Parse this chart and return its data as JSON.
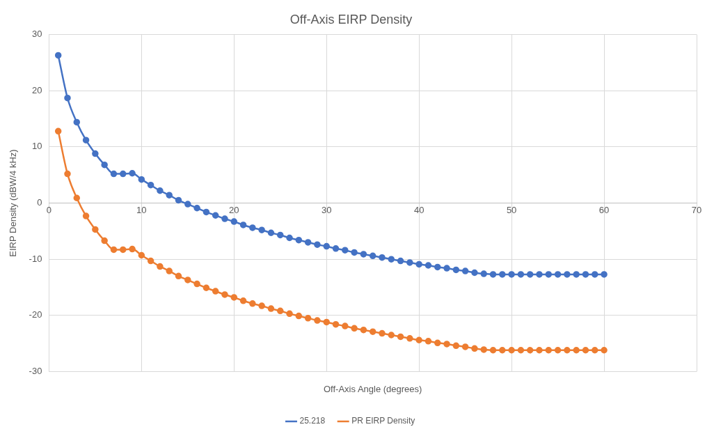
{
  "chart_data": {
    "type": "line",
    "title": "Off-Axis EIRP Density",
    "xlabel": "Off-Axis Angle (degrees)",
    "ylabel": "EIRP Density (dBW/4 kHz)",
    "x": [
      1,
      2,
      3,
      4,
      5,
      6,
      7,
      8,
      9,
      10,
      11,
      12,
      13,
      14,
      15,
      16,
      17,
      18,
      19,
      20,
      21,
      22,
      23,
      24,
      25,
      26,
      27,
      28,
      29,
      30,
      31,
      32,
      33,
      34,
      35,
      36,
      37,
      38,
      39,
      40,
      41,
      42,
      43,
      44,
      45,
      46,
      47,
      48,
      49,
      50,
      51,
      52,
      53,
      54,
      55,
      56,
      57,
      58,
      59,
      60
    ],
    "series": [
      {
        "name": "25.218",
        "color": "#4472c4",
        "values": [
          26.3,
          18.7,
          14.4,
          11.2,
          8.8,
          6.8,
          5.2,
          5.2,
          5.3,
          4.2,
          3.2,
          2.2,
          1.4,
          0.5,
          -0.2,
          -0.9,
          -1.6,
          -2.2,
          -2.8,
          -3.3,
          -3.9,
          -4.4,
          -4.8,
          -5.3,
          -5.7,
          -6.2,
          -6.6,
          -7.0,
          -7.4,
          -7.7,
          -8.1,
          -8.4,
          -8.8,
          -9.1,
          -9.4,
          -9.7,
          -10.0,
          -10.3,
          -10.6,
          -10.9,
          -11.1,
          -11.4,
          -11.6,
          -11.9,
          -12.1,
          -12.4,
          -12.6,
          -12.7,
          -12.7,
          -12.7,
          -12.7,
          -12.7,
          -12.7,
          -12.7,
          -12.7,
          -12.7,
          -12.7,
          -12.7,
          -12.7,
          -12.7
        ]
      },
      {
        "name": "PR EIRP Density",
        "color": "#ed7d31",
        "values": [
          12.8,
          5.2,
          0.9,
          -2.3,
          -4.7,
          -6.7,
          -8.3,
          -8.3,
          -8.2,
          -9.3,
          -10.3,
          -11.3,
          -12.1,
          -13.0,
          -13.7,
          -14.4,
          -15.1,
          -15.7,
          -16.3,
          -16.8,
          -17.4,
          -17.9,
          -18.3,
          -18.8,
          -19.2,
          -19.7,
          -20.1,
          -20.5,
          -20.9,
          -21.2,
          -21.6,
          -21.9,
          -22.3,
          -22.6,
          -22.9,
          -23.2,
          -23.5,
          -23.8,
          -24.1,
          -24.4,
          -24.6,
          -24.9,
          -25.1,
          -25.4,
          -25.6,
          -25.9,
          -26.1,
          -26.2,
          -26.2,
          -26.2,
          -26.2,
          -26.2,
          -26.2,
          -26.2,
          -26.2,
          -26.2,
          -26.2,
          -26.2,
          -26.2,
          -26.2
        ]
      }
    ],
    "xlim": [
      0,
      70
    ],
    "xticks": [
      0,
      10,
      20,
      30,
      40,
      50,
      60,
      70
    ],
    "ylim": [
      -30,
      30
    ],
    "yticks": [
      -30,
      -20,
      -10,
      0,
      10,
      20,
      30
    ],
    "grid": true,
    "legend": "bottom",
    "marker": "circle",
    "line_style": "solid"
  }
}
